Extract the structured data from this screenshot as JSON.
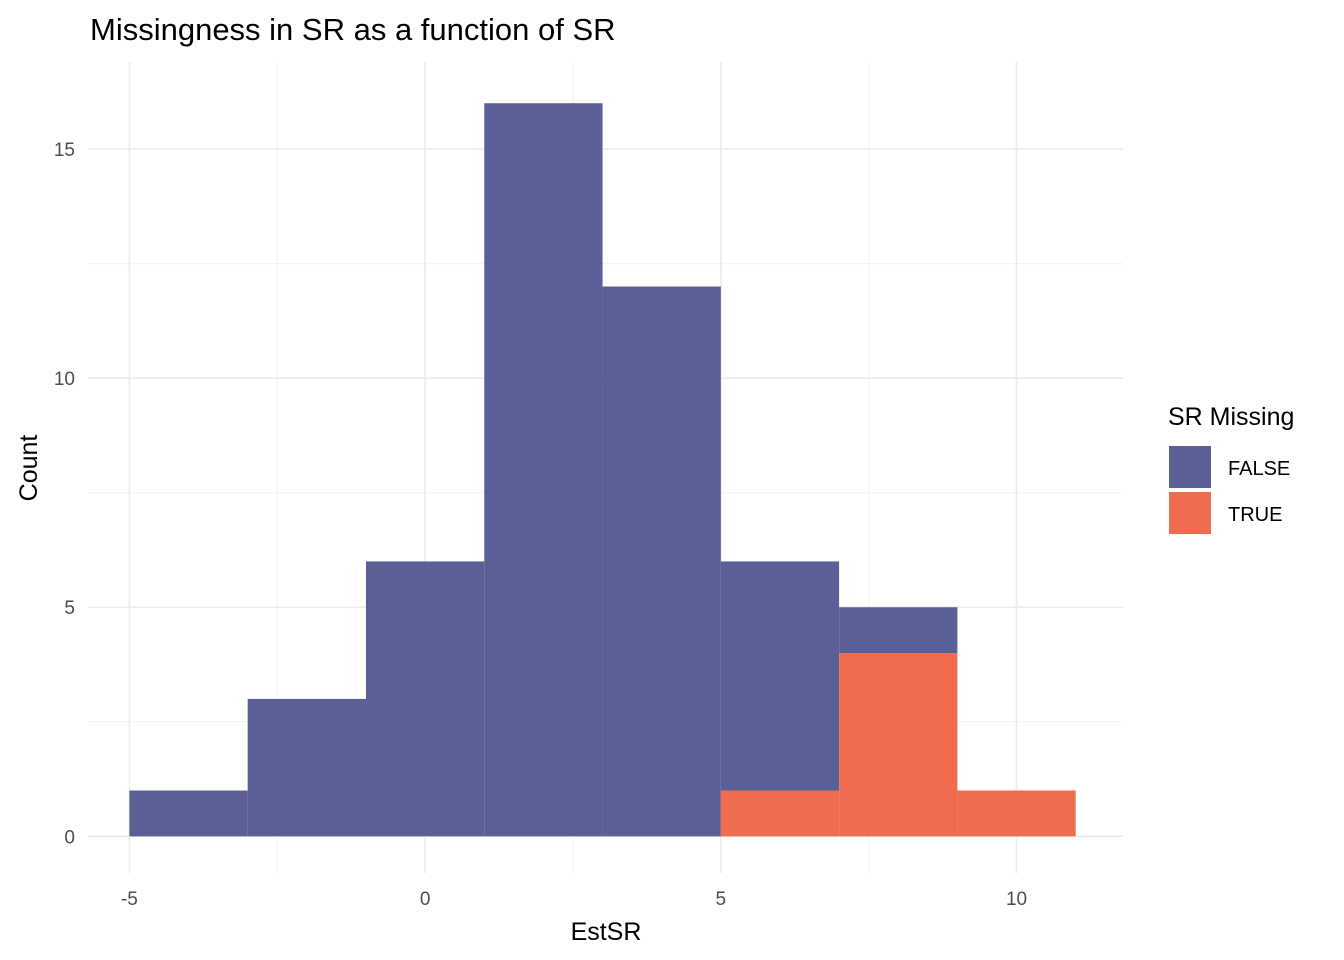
{
  "chart_data": {
    "type": "bar",
    "subtype": "stacked-histogram",
    "title": "Missingness in SR as a function of SR",
    "xlabel": "EstSR",
    "ylabel": "Count",
    "xlim": [
      -5.7,
      11.8
    ],
    "ylim": [
      -0.8,
      16.9
    ],
    "x_ticks": [
      -5,
      0,
      5,
      10
    ],
    "x_tick_labels": [
      "-5",
      "0",
      "5",
      "10"
    ],
    "y_ticks": [
      0,
      5,
      10,
      15
    ],
    "y_tick_labels": [
      "0",
      "5",
      "10",
      "15"
    ],
    "grid": true,
    "bins": [
      [
        -5,
        -3
      ],
      [
        -3,
        -1
      ],
      [
        -1,
        1
      ],
      [
        1,
        3
      ],
      [
        3,
        5
      ],
      [
        5,
        7
      ],
      [
        7,
        9
      ],
      [
        9,
        11
      ]
    ],
    "series": [
      {
        "name": "FALSE",
        "color": "#5a5f96",
        "values": [
          1,
          3,
          6,
          16,
          12,
          5,
          1,
          0
        ]
      },
      {
        "name": "TRUE",
        "color": "#ef6c4e",
        "values": [
          0,
          0,
          0,
          0,
          0,
          1,
          4,
          1
        ]
      }
    ],
    "legend": {
      "title": "SR Missing",
      "position": "right",
      "entries": [
        "FALSE",
        "TRUE"
      ]
    }
  }
}
